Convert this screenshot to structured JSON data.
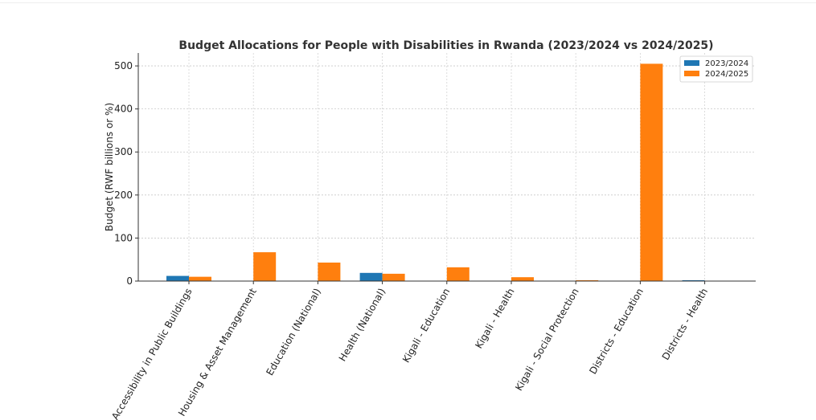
{
  "chart_data": {
    "type": "bar",
    "title": "Budget Allocations for People with Disabilities in Rwanda (2023/2024 vs 2024/2025)",
    "xlabel": "",
    "ylabel": "Budget (RWF billions or %)",
    "ylim": [
      0,
      530
    ],
    "yticks": [
      "0",
      "100",
      "200",
      "300",
      "400",
      "500"
    ],
    "grid": true,
    "legend_position": "top-right",
    "categories": [
      "Accessibility in Public Buildings",
      "Housing & Asset Management",
      "Education (National)",
      "Health (National)",
      "Kigali - Education",
      "Kigali - Health",
      "Kigali - Social Protection",
      "Districts - Education",
      "Districts - Health"
    ],
    "series": [
      {
        "name": "2023/2024",
        "color": "#1f77b4",
        "values": [
          12,
          0,
          0,
          19,
          0,
          0,
          0,
          0,
          2
        ]
      },
      {
        "name": "2024/2025",
        "color": "#ff7f0e",
        "values": [
          10,
          67,
          43,
          17,
          32,
          9,
          2,
          505,
          0
        ]
      }
    ]
  }
}
